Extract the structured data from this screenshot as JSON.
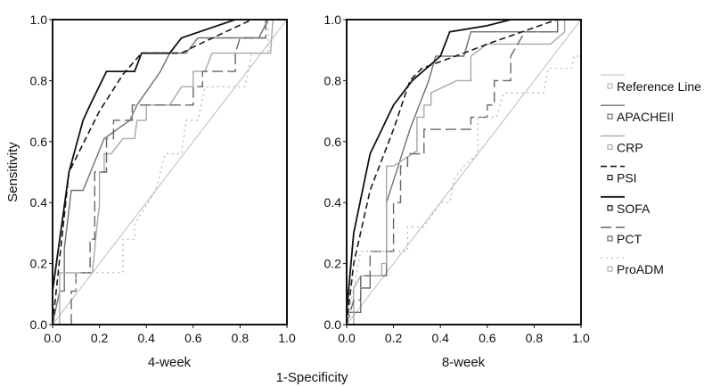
{
  "chart_data": [
    {
      "type": "line",
      "title": "4-week",
      "xlabel": "1-Specificity",
      "ylabel": "Sensitivity",
      "xlim": [
        0,
        1
      ],
      "ylim": [
        0,
        1
      ],
      "xticks": [
        "0.0",
        "0.2",
        "0.4",
        "0.6",
        "0.8",
        "1.0"
      ],
      "yticks": [
        "0.0",
        "0.2",
        "0.4",
        "0.6",
        "0.8",
        "1.0"
      ],
      "series": [
        {
          "name": "Reference Line",
          "points": [
            [
              0,
              0
            ],
            [
              1,
              1
            ]
          ]
        },
        {
          "name": "APACHEII",
          "points": [
            [
              0,
              0
            ],
            [
              0.03,
              0.11
            ],
            [
              0.05,
              0.11
            ],
            [
              0.05,
              0.25
            ],
            [
              0.08,
              0.44
            ],
            [
              0.13,
              0.44
            ],
            [
              0.22,
              0.61
            ],
            [
              0.33,
              0.67
            ],
            [
              0.36,
              0.72
            ],
            [
              0.46,
              0.83
            ],
            [
              0.5,
              0.89
            ],
            [
              0.57,
              0.89
            ],
            [
              0.62,
              0.94
            ],
            [
              0.88,
              0.94
            ],
            [
              0.92,
              1
            ],
            [
              1,
              1
            ]
          ]
        },
        {
          "name": "CRP",
          "points": [
            [
              0.03,
              0
            ],
            [
              0.03,
              0.17
            ],
            [
              0.17,
              0.17
            ],
            [
              0.19,
              0.33
            ],
            [
              0.2,
              0.39
            ],
            [
              0.2,
              0.5
            ],
            [
              0.22,
              0.5
            ],
            [
              0.22,
              0.56
            ],
            [
              0.25,
              0.56
            ],
            [
              0.3,
              0.61
            ],
            [
              0.35,
              0.61
            ],
            [
              0.36,
              0.67
            ],
            [
              0.4,
              0.67
            ],
            [
              0.4,
              0.72
            ],
            [
              0.5,
              0.72
            ],
            [
              0.55,
              0.78
            ],
            [
              0.6,
              0.78
            ],
            [
              0.6,
              0.83
            ],
            [
              0.65,
              0.83
            ],
            [
              0.68,
              0.89
            ],
            [
              0.93,
              0.89
            ],
            [
              0.94,
              1
            ],
            [
              1,
              1
            ]
          ]
        },
        {
          "name": "PSI",
          "points": [
            [
              0,
              0
            ],
            [
              0.07,
              0.5
            ],
            [
              0.2,
              0.7
            ],
            [
              0.3,
              0.82
            ],
            [
              0.38,
              0.89
            ],
            [
              0.55,
              0.89
            ],
            [
              0.6,
              0.91
            ],
            [
              0.85,
              1
            ],
            [
              1,
              1
            ]
          ]
        },
        {
          "name": "SOFA",
          "points": [
            [
              0,
              0.11
            ],
            [
              0.07,
              0.5
            ],
            [
              0.13,
              0.67
            ],
            [
              0.16,
              0.72
            ],
            [
              0.23,
              0.83
            ],
            [
              0.35,
              0.83
            ],
            [
              0.38,
              0.89
            ],
            [
              0.5,
              0.89
            ],
            [
              0.55,
              0.94
            ],
            [
              0.78,
              1
            ],
            [
              1,
              1
            ]
          ]
        },
        {
          "name": "PCT",
          "points": [
            [
              0.08,
              0
            ],
            [
              0.08,
              0.11
            ],
            [
              0.1,
              0.11
            ],
            [
              0.1,
              0.17
            ],
            [
              0.16,
              0.17
            ],
            [
              0.16,
              0.28
            ],
            [
              0.18,
              0.28
            ],
            [
              0.18,
              0.5
            ],
            [
              0.23,
              0.5
            ],
            [
              0.23,
              0.61
            ],
            [
              0.26,
              0.61
            ],
            [
              0.26,
              0.67
            ],
            [
              0.34,
              0.67
            ],
            [
              0.34,
              0.72
            ],
            [
              0.6,
              0.72
            ],
            [
              0.6,
              0.78
            ],
            [
              0.64,
              0.78
            ],
            [
              0.64,
              0.83
            ],
            [
              0.78,
              0.83
            ],
            [
              0.78,
              0.89
            ],
            [
              0.8,
              0.94
            ],
            [
              0.91,
              0.94
            ],
            [
              0.91,
              1
            ],
            [
              1,
              1
            ]
          ]
        },
        {
          "name": "ProADM",
          "points": [
            [
              0,
              0
            ],
            [
              0.1,
              0.1
            ],
            [
              0.1,
              0.17
            ],
            [
              0.3,
              0.17
            ],
            [
              0.3,
              0.28
            ],
            [
              0.35,
              0.28
            ],
            [
              0.35,
              0.33
            ],
            [
              0.44,
              0.44
            ],
            [
              0.46,
              0.5
            ],
            [
              0.48,
              0.56
            ],
            [
              0.55,
              0.56
            ],
            [
              0.57,
              0.67
            ],
            [
              0.62,
              0.67
            ],
            [
              0.65,
              0.78
            ],
            [
              0.82,
              0.78
            ],
            [
              0.85,
              0.89
            ],
            [
              0.92,
              0.89
            ],
            [
              0.92,
              1
            ],
            [
              1,
              1
            ]
          ]
        }
      ]
    },
    {
      "type": "line",
      "title": "8-week",
      "xlabel": "1-Specificity",
      "ylabel": "Sensitivity",
      "xlim": [
        0,
        1
      ],
      "ylim": [
        0,
        1
      ],
      "xticks": [
        "0.0",
        "0.2",
        "0.4",
        "0.6",
        "0.8",
        "1.0"
      ],
      "yticks": [
        "0.0",
        "0.2",
        "0.4",
        "0.6",
        "0.8",
        "1.0"
      ],
      "series": [
        {
          "name": "Reference Line",
          "points": [
            [
              0,
              0
            ],
            [
              1,
              1
            ]
          ]
        },
        {
          "name": "APACHEII",
          "points": [
            [
              0,
              0.04
            ],
            [
              0.06,
              0.04
            ],
            [
              0.06,
              0.12
            ],
            [
              0.1,
              0.12
            ],
            [
              0.1,
              0.16
            ],
            [
              0.17,
              0.16
            ],
            [
              0.17,
              0.4
            ],
            [
              0.27,
              0.64
            ],
            [
              0.35,
              0.8
            ],
            [
              0.38,
              0.88
            ],
            [
              0.5,
              0.88
            ],
            [
              0.53,
              0.96
            ],
            [
              0.9,
              0.96
            ],
            [
              0.9,
              1
            ],
            [
              1,
              1
            ]
          ]
        },
        {
          "name": "CRP",
          "points": [
            [
              0.03,
              0
            ],
            [
              0.03,
              0.12
            ],
            [
              0.06,
              0.16
            ],
            [
              0.15,
              0.16
            ],
            [
              0.15,
              0.2
            ],
            [
              0.17,
              0.2
            ],
            [
              0.17,
              0.52
            ],
            [
              0.2,
              0.52
            ],
            [
              0.3,
              0.57
            ],
            [
              0.3,
              0.68
            ],
            [
              0.33,
              0.68
            ],
            [
              0.33,
              0.72
            ],
            [
              0.36,
              0.72
            ],
            [
              0.36,
              0.76
            ],
            [
              0.47,
              0.8
            ],
            [
              0.53,
              0.8
            ],
            [
              0.53,
              0.88
            ],
            [
              0.6,
              0.92
            ],
            [
              0.87,
              0.92
            ],
            [
              0.93,
              0.96
            ],
            [
              0.93,
              1
            ],
            [
              1,
              1
            ]
          ]
        },
        {
          "name": "PSI",
          "points": [
            [
              0,
              0
            ],
            [
              0.03,
              0.2
            ],
            [
              0.1,
              0.44
            ],
            [
              0.2,
              0.64
            ],
            [
              0.27,
              0.8
            ],
            [
              0.32,
              0.84
            ],
            [
              0.5,
              0.89
            ],
            [
              0.6,
              0.92
            ],
            [
              0.86,
              0.99
            ],
            [
              0.9,
              1
            ],
            [
              1,
              1
            ]
          ]
        },
        {
          "name": "SOFA",
          "points": [
            [
              0,
              0.04
            ],
            [
              0.03,
              0.3
            ],
            [
              0.1,
              0.56
            ],
            [
              0.2,
              0.72
            ],
            [
              0.28,
              0.8
            ],
            [
              0.4,
              0.88
            ],
            [
              0.44,
              0.96
            ],
            [
              0.6,
              0.98
            ],
            [
              0.7,
              1
            ],
            [
              1,
              1
            ]
          ]
        },
        {
          "name": "PCT",
          "points": [
            [
              0,
              0
            ],
            [
              0.03,
              0.08
            ],
            [
              0.06,
              0.08
            ],
            [
              0.06,
              0.16
            ],
            [
              0.1,
              0.16
            ],
            [
              0.1,
              0.24
            ],
            [
              0.2,
              0.24
            ],
            [
              0.2,
              0.4
            ],
            [
              0.23,
              0.4
            ],
            [
              0.23,
              0.52
            ],
            [
              0.26,
              0.52
            ],
            [
              0.26,
              0.56
            ],
            [
              0.33,
              0.56
            ],
            [
              0.33,
              0.64
            ],
            [
              0.53,
              0.64
            ],
            [
              0.53,
              0.68
            ],
            [
              0.6,
              0.68
            ],
            [
              0.6,
              0.72
            ],
            [
              0.63,
              0.72
            ],
            [
              0.63,
              0.8
            ],
            [
              0.7,
              0.8
            ],
            [
              0.7,
              0.88
            ],
            [
              0.73,
              0.92
            ],
            [
              0.76,
              0.96
            ],
            [
              0.9,
              0.96
            ],
            [
              0.9,
              1
            ],
            [
              1,
              1
            ]
          ]
        },
        {
          "name": "ProADM",
          "points": [
            [
              0,
              0
            ],
            [
              0.06,
              0.24
            ],
            [
              0.26,
              0.24
            ],
            [
              0.26,
              0.32
            ],
            [
              0.33,
              0.32
            ],
            [
              0.4,
              0.4
            ],
            [
              0.44,
              0.4
            ],
            [
              0.46,
              0.48
            ],
            [
              0.5,
              0.52
            ],
            [
              0.56,
              0.56
            ],
            [
              0.56,
              0.68
            ],
            [
              0.64,
              0.68
            ],
            [
              0.67,
              0.76
            ],
            [
              0.84,
              0.76
            ],
            [
              0.86,
              0.84
            ],
            [
              0.96,
              0.84
            ],
            [
              0.97,
              0.88
            ],
            [
              1,
              0.88
            ]
          ]
        }
      ]
    }
  ],
  "legend": {
    "placement": "right",
    "entries": [
      "Reference Line",
      "APACHEII",
      "CRP",
      "PSI",
      "SOFA",
      "PCT",
      "ProADM"
    ]
  },
  "styles": {
    "Reference Line": {
      "color": "#bbbbbb",
      "dash": ""
    },
    "APACHEII": {
      "color": "#707070",
      "dash": ""
    },
    "CRP": {
      "color": "#a8a8a8",
      "dash": ""
    },
    "PSI": {
      "color": "#1a1a1a",
      "dash": "7,4"
    },
    "SOFA": {
      "color": "#111111",
      "dash": ""
    },
    "PCT": {
      "color": "#666666",
      "dash": "12,5"
    },
    "ProADM": {
      "color": "#b0b0b0",
      "dash": "2,4"
    }
  },
  "axis_labels": {
    "y": "Sensitivity",
    "x": "1-Specificity",
    "left_title": "4-week",
    "right_title": "8-week"
  }
}
